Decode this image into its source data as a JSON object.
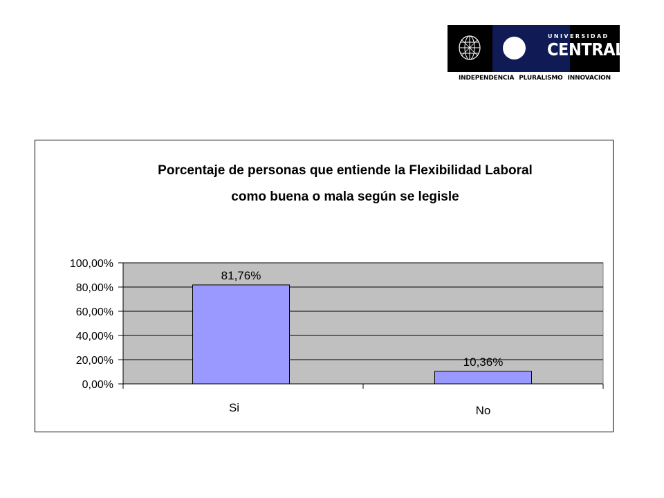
{
  "logo": {
    "name_top": "UNIVERSIDAD",
    "name_main": "CENTRAL",
    "tagline": [
      "INDEPENDENCIA",
      "PLURALISMO",
      "INNOVACION"
    ]
  },
  "colors": {
    "plot_area": "#c0c0c0",
    "bar_fill": "#9999ff",
    "bar_stroke": "#000000",
    "logo_blue": "#101a55"
  },
  "chart_data": {
    "type": "bar",
    "title": "Porcentaje de personas que entiende la Flexibilidad Laboral como buena o mala según se legisle",
    "title_lines": [
      "Porcentaje de personas que entiende la Flexibilidad Laboral",
      "como buena o mala según se legisle"
    ],
    "categories": [
      "Si",
      "No"
    ],
    "values": [
      81.76,
      10.36
    ],
    "data_labels": [
      "81,76%",
      "10,36%"
    ],
    "y_ticks": [
      "0,00%",
      "20,00%",
      "40,00%",
      "60,00%",
      "80,00%",
      "100,00%"
    ],
    "ylim": [
      0,
      100
    ],
    "xlabel": "",
    "ylabel": "",
    "grid": true,
    "legend": "none"
  }
}
